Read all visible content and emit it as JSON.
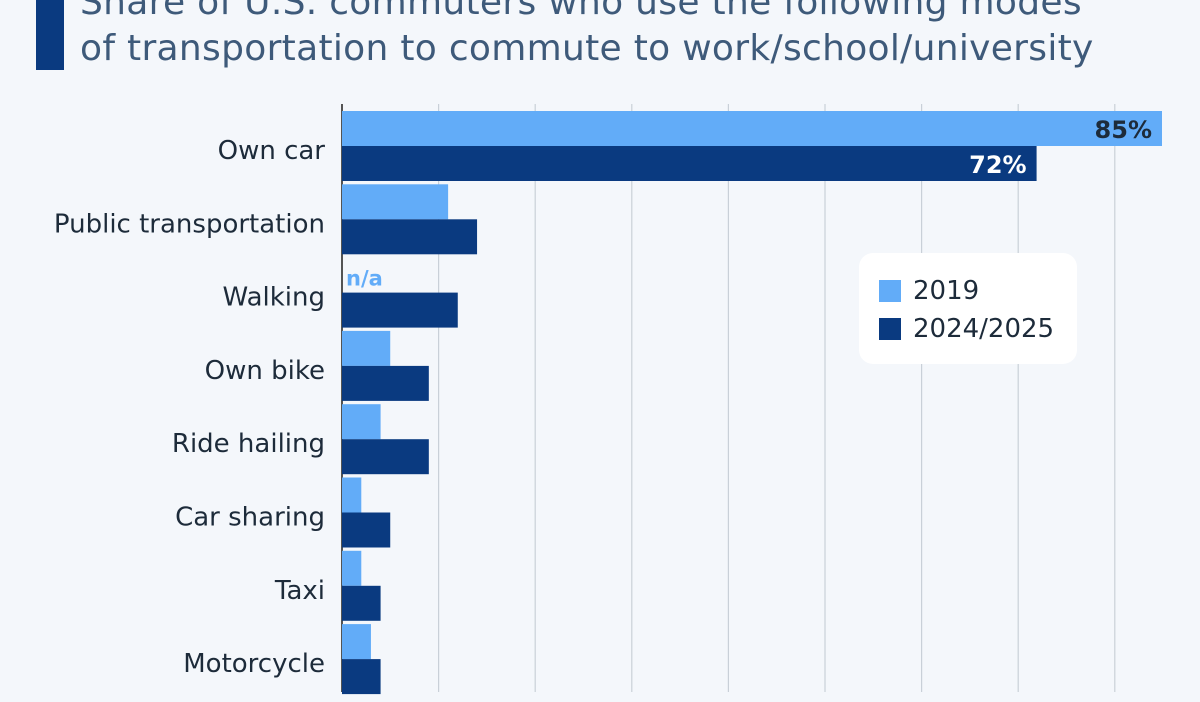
{
  "title": {
    "line1": "Share of U.S. commuters who use the following modes",
    "line2": "of transportation to commute to work/school/university"
  },
  "colors": {
    "series_2019": "#62acf8",
    "series_2024": "#0a3a80",
    "grid": "#c9d0d8",
    "label_dark": "#1d2b3a"
  },
  "legend": {
    "items": [
      {
        "label": "2019",
        "color": "#62acf8"
      },
      {
        "label": "2024/2025",
        "color": "#0a3a80"
      }
    ]
  },
  "chart_data": {
    "type": "bar",
    "orientation": "horizontal",
    "categories": [
      "Own car",
      "Public transportation",
      "Walking",
      "Own bike",
      "Ride hailing",
      "Car sharing",
      "Taxi",
      "Motorcycle"
    ],
    "series": [
      {
        "name": "2019",
        "values": [
          85,
          11,
          null,
          5,
          4,
          2,
          2,
          3
        ],
        "value_labels": [
          "85%",
          "",
          "n/a",
          "",
          "",
          "",
          "",
          ""
        ]
      },
      {
        "name": "2024/2025",
        "values": [
          72,
          14,
          12,
          9,
          9,
          5,
          4,
          4
        ],
        "value_labels": [
          "72%",
          "",
          "",
          "",
          "",
          "",
          "",
          ""
        ]
      }
    ],
    "xlim": [
      0,
      85
    ],
    "grid": true,
    "legend_position": "right"
  }
}
